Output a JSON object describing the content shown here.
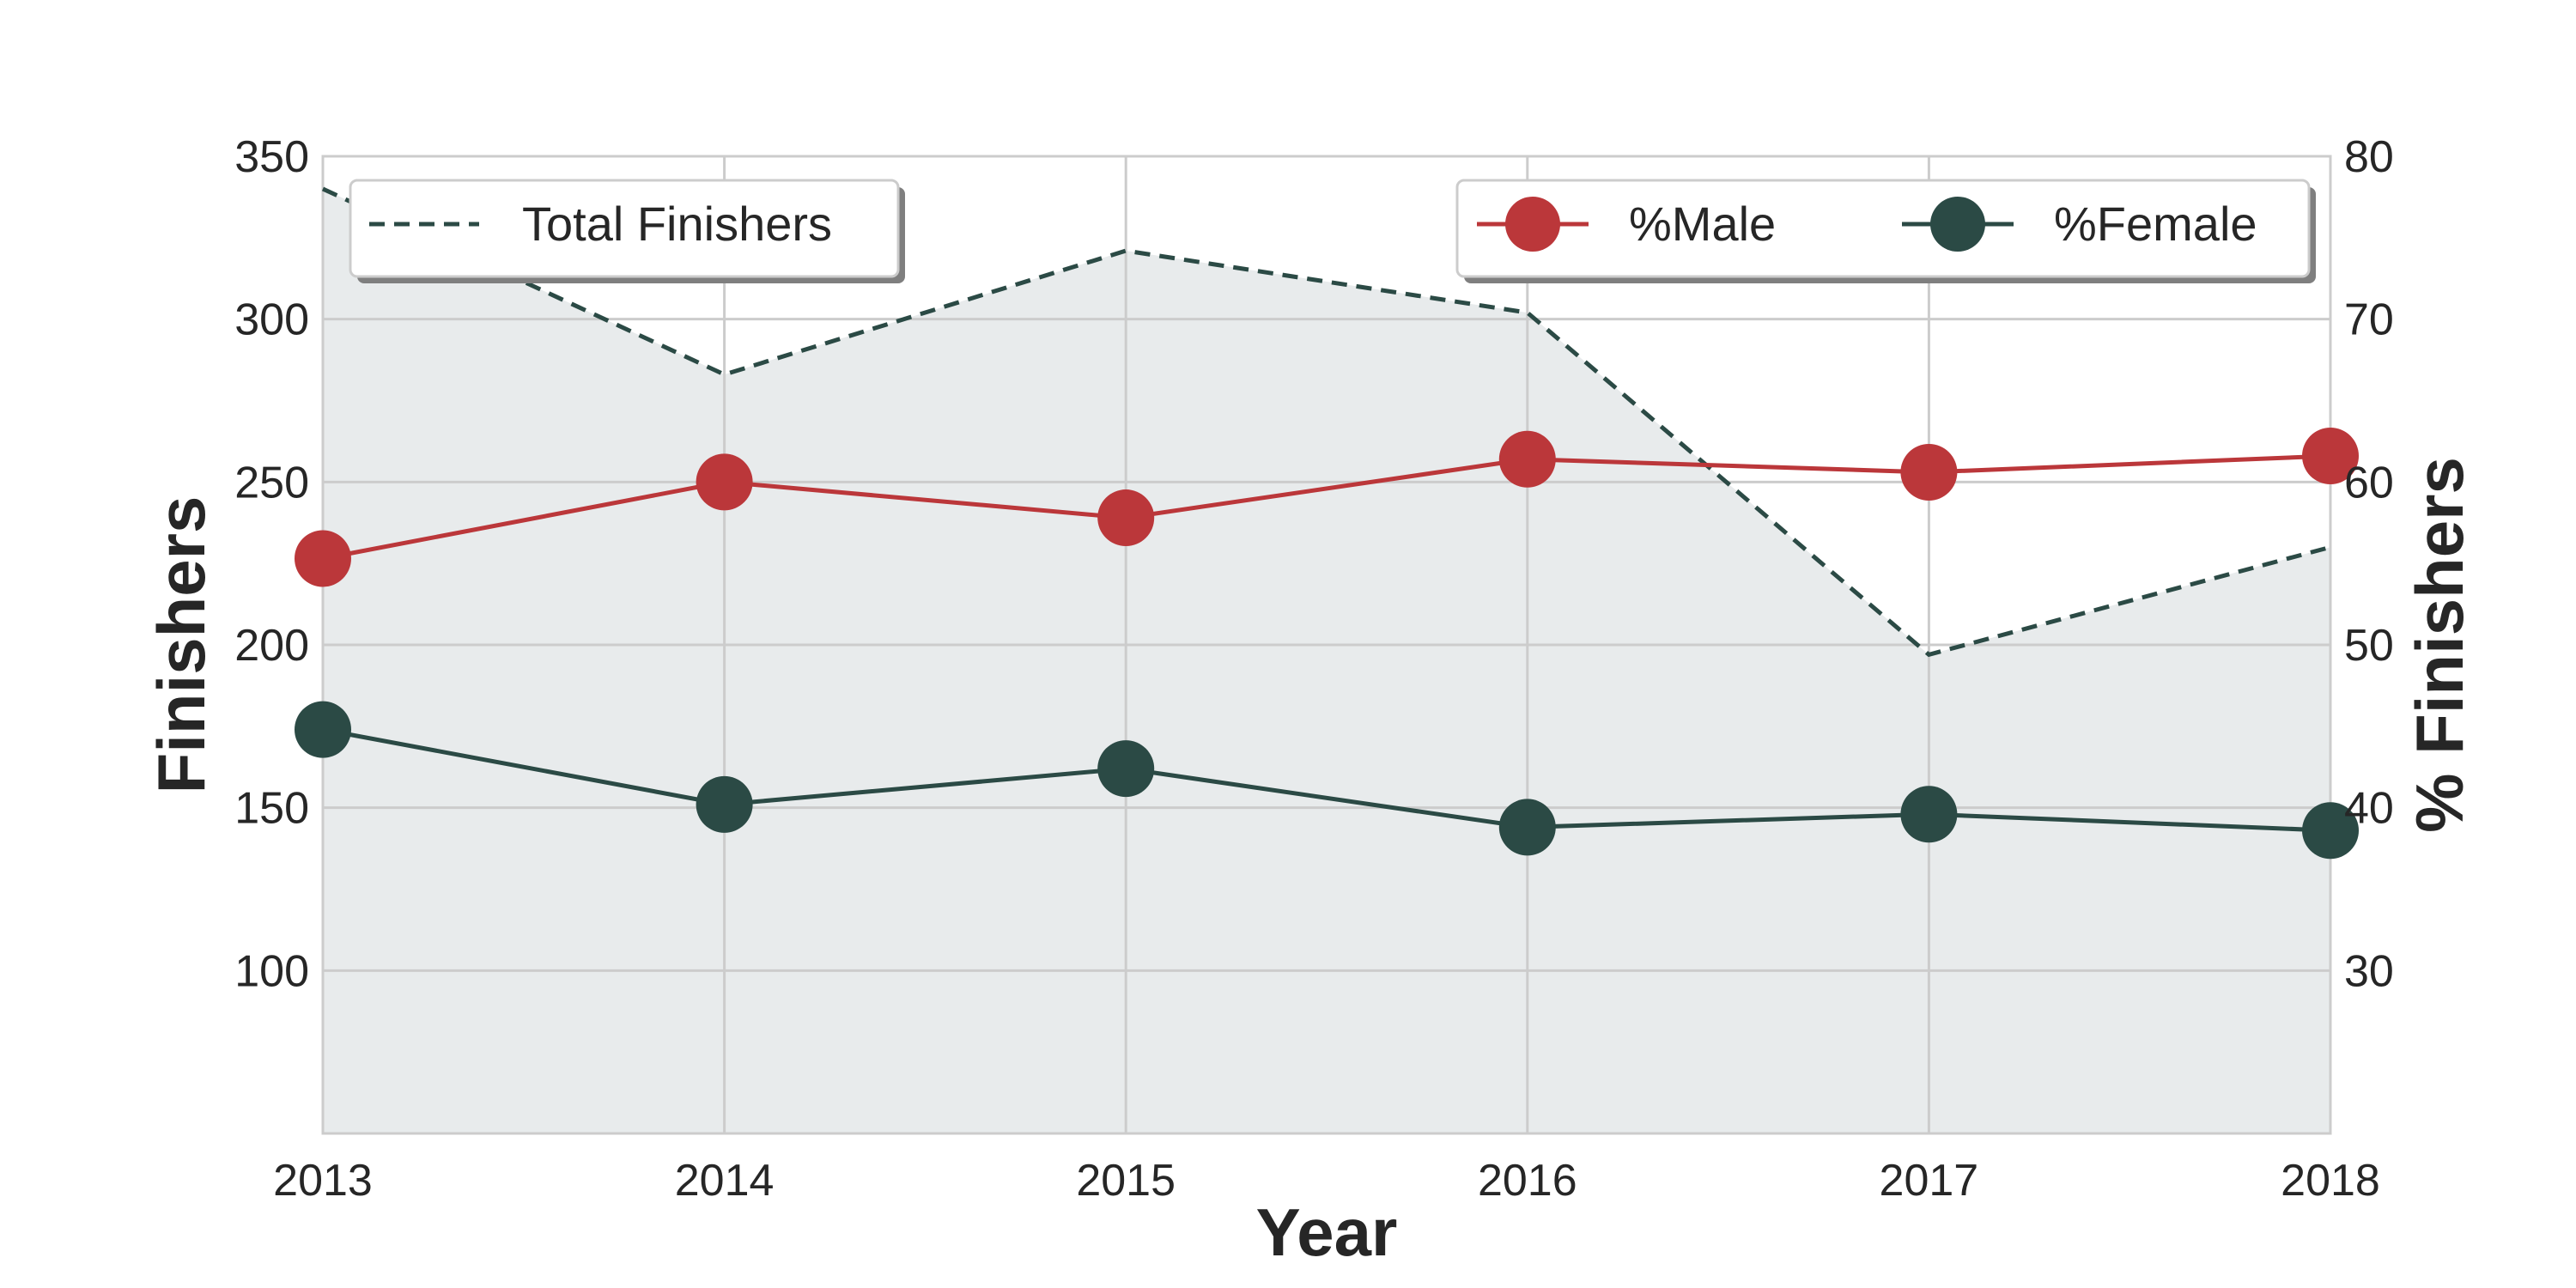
{
  "chart_data": {
    "type": "line",
    "x": [
      2013,
      2014,
      2015,
      2016,
      2017,
      2018
    ],
    "xlabel": "Year",
    "ylabel": "Finishers",
    "ylabel_right": "% Finishers",
    "xlim": [
      2013,
      2018
    ],
    "ylim": [
      50,
      350
    ],
    "ylim_right": [
      20,
      80
    ],
    "yticks": [
      100,
      150,
      200,
      250,
      300,
      350
    ],
    "yticks_right": [
      30,
      40,
      50,
      60,
      70,
      80
    ],
    "grid": true,
    "series": [
      {
        "name": "Total Finishers",
        "axis": "left",
        "style": "dashed-area",
        "color": "#2b4a45",
        "fill": "#e8ebec",
        "values": [
          340,
          283,
          321,
          302,
          197,
          230
        ]
      },
      {
        "name": "%Male",
        "axis": "right",
        "style": "line-marker",
        "color": "#bb373a",
        "values": [
          55.3,
          60.0,
          57.8,
          61.4,
          60.6,
          61.6
        ]
      },
      {
        "name": "%Female",
        "axis": "right",
        "style": "line-marker",
        "color": "#2b4a45",
        "values": [
          44.8,
          40.2,
          42.4,
          38.8,
          39.6,
          38.6
        ]
      }
    ],
    "legends": [
      {
        "placement": "top-left",
        "entries": [
          "Total Finishers"
        ]
      },
      {
        "placement": "top-right",
        "entries": [
          "%Male",
          "%Female"
        ]
      }
    ]
  }
}
